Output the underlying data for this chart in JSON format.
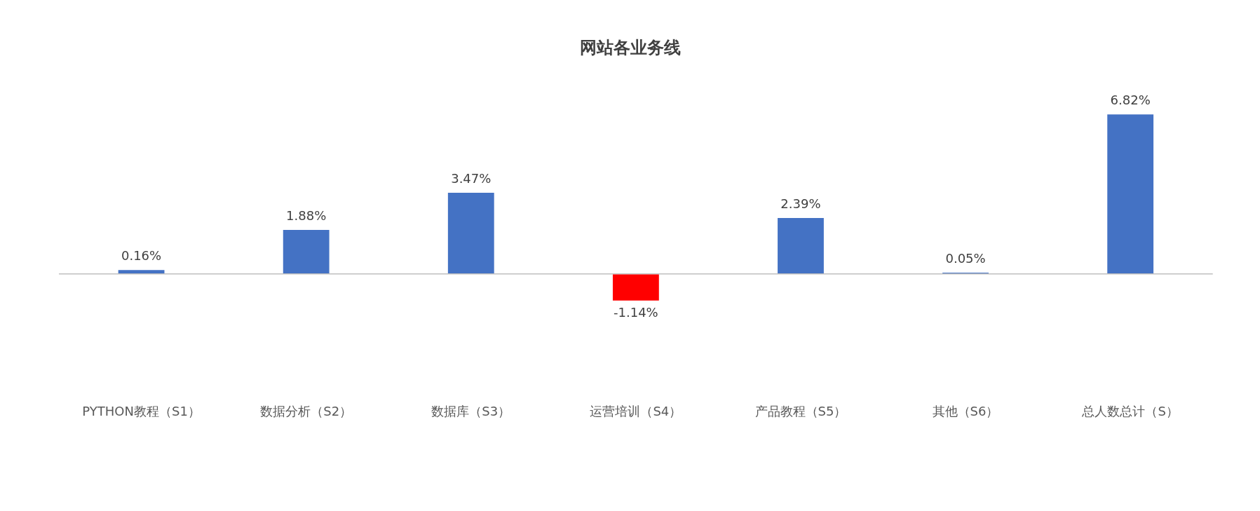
{
  "chart_data": {
    "type": "bar",
    "title": "网站各业务线",
    "categories": [
      "PYTHON教程（S1）",
      "数据分析（S2）",
      "数据库（S3）",
      "运营培训（S4）",
      "产品教程（S5）",
      "其他（S6）",
      "总人数总计（S）"
    ],
    "values": [
      0.16,
      1.88,
      3.47,
      -1.14,
      2.39,
      0.05,
      6.82
    ],
    "colors": [
      "#4472c4",
      "#4472c4",
      "#4472c4",
      "#ff0000",
      "#4472c4",
      "#4472c4",
      "#4472c4"
    ],
    "value_labels": [
      "0.16%",
      "1.88%",
      "3.47%",
      "-1.14%",
      "2.39%",
      "0.05%",
      "6.82%"
    ],
    "relative": false
  }
}
